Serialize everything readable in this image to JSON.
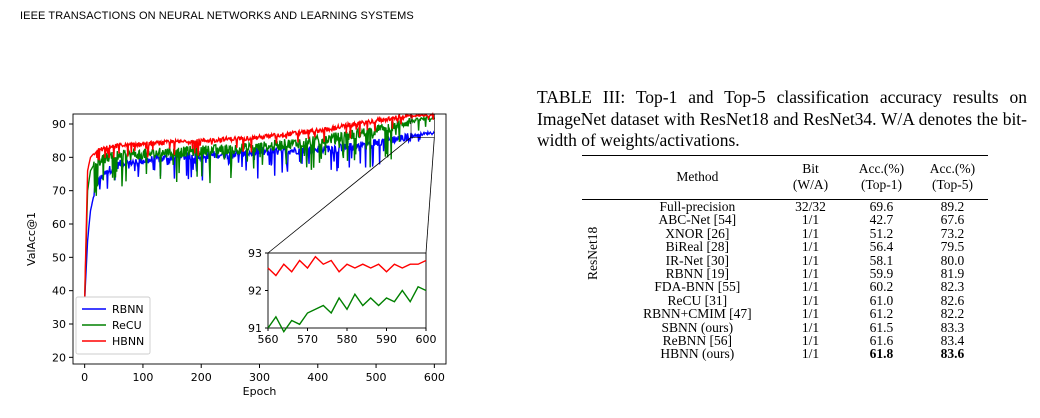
{
  "page": {
    "running_header": "IEEE TRANSACTIONS ON NEURAL NETWORKS AND LEARNING SYSTEMS"
  },
  "figure": {
    "xlabel": "Epoch",
    "ylabel": "ValAcc@1"
  },
  "chart_data": [
    {
      "type": "line",
      "title": "",
      "xlabel": "Epoch",
      "ylabel": "ValAcc@1",
      "xlim": [
        -20,
        620
      ],
      "ylim": [
        18,
        93
      ],
      "xticks": [
        0,
        100,
        200,
        300,
        400,
        500,
        600
      ],
      "yticks": [
        20,
        30,
        40,
        50,
        60,
        70,
        80,
        90
      ],
      "legend_position": "lower-left",
      "series": [
        {
          "name": "RBNN",
          "color": "#0000ff",
          "x": [
            0,
            5,
            10,
            20,
            40,
            60,
            100,
            150,
            200,
            250,
            300,
            350,
            400,
            450,
            500,
            550,
            580,
            600
          ],
          "y": [
            37,
            55,
            64,
            72,
            76,
            78,
            79,
            80,
            80.5,
            81,
            81.5,
            82,
            82.5,
            83,
            84.5,
            86,
            87,
            87.5
          ]
        },
        {
          "name": "ReCU",
          "color": "#008000",
          "x": [
            0,
            5,
            10,
            20,
            40,
            60,
            100,
            150,
            200,
            250,
            300,
            350,
            400,
            450,
            500,
            550,
            580,
            600
          ],
          "y": [
            37,
            70,
            76,
            79,
            80,
            80.5,
            81,
            81.5,
            82,
            82.5,
            83,
            84,
            85,
            86.5,
            88,
            90.5,
            91.5,
            92
          ]
        },
        {
          "name": "HBNN",
          "color": "#ff0000",
          "x": [
            0,
            5,
            10,
            20,
            40,
            60,
            100,
            150,
            200,
            250,
            300,
            350,
            400,
            450,
            500,
            550,
            580,
            600
          ],
          "y": [
            37,
            76,
            80,
            82,
            83,
            83.5,
            84,
            84.5,
            85,
            85.5,
            86,
            87,
            88,
            89.5,
            91,
            92.3,
            92.6,
            92.8
          ]
        }
      ]
    },
    {
      "type": "line",
      "title": "",
      "xlabel": "",
      "ylabel": "",
      "xlim": [
        560,
        600
      ],
      "ylim": [
        91,
        93
      ],
      "xticks": [
        560,
        570,
        580,
        590,
        600
      ],
      "yticks": [
        91,
        92,
        93
      ],
      "series": [
        {
          "name": "ReCU",
          "color": "#008000",
          "x": [
            560,
            562,
            564,
            566,
            568,
            570,
            572,
            574,
            576,
            578,
            580,
            582,
            584,
            586,
            588,
            590,
            592,
            594,
            596,
            598,
            600
          ],
          "y": [
            91.0,
            91.3,
            90.9,
            91.2,
            91.1,
            91.4,
            91.5,
            91.6,
            91.4,
            91.8,
            91.5,
            91.9,
            91.6,
            91.8,
            91.6,
            91.8,
            91.7,
            92.0,
            91.7,
            92.1,
            92.0
          ]
        },
        {
          "name": "HBNN",
          "color": "#ff0000",
          "x": [
            560,
            562,
            564,
            566,
            568,
            570,
            572,
            574,
            576,
            578,
            580,
            582,
            584,
            586,
            588,
            590,
            592,
            594,
            596,
            598,
            600
          ],
          "y": [
            92.6,
            92.4,
            92.7,
            92.5,
            92.8,
            92.6,
            92.9,
            92.7,
            92.8,
            92.5,
            92.7,
            92.6,
            92.7,
            92.6,
            92.7,
            92.5,
            92.7,
            92.6,
            92.7,
            92.7,
            92.8
          ]
        }
      ]
    }
  ],
  "table": {
    "caption": "TABLE III: Top-1 and Top-5 classification accuracy results on ImageNet dataset with ResNet18 and ResNet34. W/A denotes the bit-width of weights/activations.",
    "group_label": "ResNet18",
    "headers": {
      "method": "Method",
      "bit_1": "Bit",
      "bit_2": "(W/A)",
      "top1_1": "Acc.(%)",
      "top1_2": "(Top-1)",
      "top5_1": "Acc.(%)",
      "top5_2": "(Top-5)"
    },
    "rows": [
      {
        "method": "Full-precision",
        "bit": "32/32",
        "top1": "69.6",
        "top5": "89.2"
      },
      {
        "method": "ABC-Net [54]",
        "bit": "1/1",
        "top1": "42.7",
        "top5": "67.6"
      },
      {
        "method": "XNOR [26]",
        "bit": "1/1",
        "top1": "51.2",
        "top5": "73.2"
      },
      {
        "method": "BiReal [28]",
        "bit": "1/1",
        "top1": "56.4",
        "top5": "79.5"
      },
      {
        "method": "IR-Net [30]",
        "bit": "1/1",
        "top1": "58.1",
        "top5": "80.0"
      },
      {
        "method": "RBNN [19]",
        "bit": "1/1",
        "top1": "59.9",
        "top5": "81.9"
      },
      {
        "method": "FDA-BNN [55]",
        "bit": "1/1",
        "top1": "60.2",
        "top5": "82.3"
      },
      {
        "method": "ReCU [31]",
        "bit": "1/1",
        "top1": "61.0",
        "top5": "82.6"
      },
      {
        "method": "RBNN+CMIM [47]",
        "bit": "1/1",
        "top1": "61.2",
        "top5": "82.2"
      },
      {
        "method": "SBNN (ours)",
        "bit": "1/1",
        "top1": "61.5",
        "top5": "83.3"
      },
      {
        "method": "ReBNN [56]",
        "bit": "1/1",
        "top1": "61.6",
        "top5": "83.4"
      },
      {
        "method": "HBNN (ours)",
        "bit": "1/1",
        "top1": "61.8",
        "top5": "83.6"
      }
    ]
  }
}
